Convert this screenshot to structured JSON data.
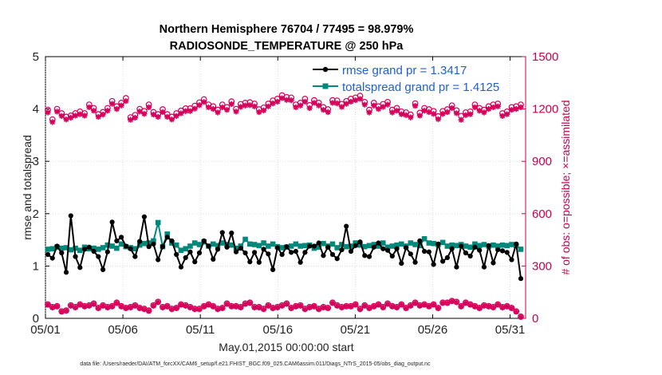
{
  "chart_data": {
    "type": "line",
    "title": "Northern Hemisphere 76704 / 77495 = 98.979%",
    "subtitle": "RADIOSONDE_TEMPERATURE @ 250 hPa",
    "xlabel": "May.01,2015 00:00:00 start",
    "ylabel_left": "rmse and totalspread",
    "ylabel_right": "# of obs: o=possible; ×=assimilated",
    "footer": "data file: /Users/raeder/DAI/ATM_forcXX/CAM6_setup/f.e21.FHIST_BGC.f09_025.CAM6assim.011/Diags_NTrS_2015-05/obs_diag_output.nc",
    "x_ticks": [
      {
        "value": 1,
        "label": "05/01"
      },
      {
        "value": 6,
        "label": "05/06"
      },
      {
        "value": 11,
        "label": "05/11"
      },
      {
        "value": 16,
        "label": "05/16"
      },
      {
        "value": 21,
        "label": "05/21"
      },
      {
        "value": 26,
        "label": "05/26"
      },
      {
        "value": 31,
        "label": "05/31"
      }
    ],
    "xlim": [
      1,
      32
    ],
    "ylim_left": [
      0,
      5
    ],
    "ylim_right": [
      0,
      1500
    ],
    "y_ticks_left": [
      "0",
      "1",
      "2",
      "3",
      "4",
      "5"
    ],
    "y_ticks_right": [
      "0",
      "300",
      "600",
      "900",
      "1200",
      "1500"
    ],
    "legend": {
      "position": "top-right",
      "entries": [
        "rmse grand pr = 1.3417",
        "totalspread grand pr = 1.4125"
      ]
    },
    "colors": {
      "rmse": "#000000",
      "totalspread": "#00897b",
      "obs": "#d6005a",
      "legend_text": "#1f5fd0",
      "right_axis": "#c8004e"
    },
    "series": [
      {
        "name": "rmse",
        "values": [
          1.22,
          1.15,
          1.38,
          1.25,
          0.88,
          1.96,
          1.18,
          0.97,
          1.32,
          1.36,
          1.28,
          1.18,
          0.93,
          1.27,
          1.84,
          1.48,
          1.55,
          1.38,
          1.33,
          1.18,
          1.47,
          1.94,
          1.37,
          1.42,
          1.12,
          1.37,
          1.55,
          1.48,
          1.22,
          0.98,
          1.16,
          1.27,
          1.08,
          1.25,
          1.48,
          1.38,
          1.13,
          1.32,
          1.64,
          1.36,
          1.63,
          1.27,
          1.34,
          1.25,
          1.08,
          1.26,
          1.07,
          1.32,
          1.23,
          0.93,
          1.35,
          1.22,
          1.37,
          1.26,
          1.28,
          1.07,
          1.26,
          1.38,
          1.38,
          1.44,
          1.2,
          1.36,
          1.22,
          1.14,
          1.31,
          1.76,
          1.28,
          1.39,
          1.46,
          1.2,
          1.18,
          1.36,
          1.44,
          1.33,
          1.3,
          1.19,
          1.33,
          1.05,
          1.35,
          1.23,
          1.07,
          1.48,
          1.28,
          1.27,
          1.03,
          1.42,
          1.09,
          1.16,
          1.33,
          0.98,
          1.38,
          1.25,
          1.19,
          1.36,
          1.3,
          0.98,
          1.39,
          1.06,
          1.31,
          1.29,
          1.26,
          1.12,
          1.42,
          0.76
        ]
      },
      {
        "name": "totalspread",
        "values": [
          1.32,
          1.33,
          1.36,
          1.34,
          1.35,
          1.31,
          1.34,
          1.3,
          1.36,
          1.33,
          1.34,
          1.32,
          1.35,
          1.4,
          1.38,
          1.34,
          1.42,
          1.37,
          1.35,
          1.33,
          1.4,
          1.43,
          1.44,
          1.48,
          1.83,
          1.37,
          1.61,
          1.44,
          1.4,
          1.3,
          1.33,
          1.38,
          1.44,
          1.41,
          1.46,
          1.38,
          1.42,
          1.39,
          1.44,
          1.41,
          1.4,
          1.34,
          1.38,
          1.51,
          1.42,
          1.41,
          1.39,
          1.44,
          1.38,
          1.42,
          1.37,
          1.35,
          1.36,
          1.38,
          1.42,
          1.38,
          1.39,
          1.4,
          1.34,
          1.36,
          1.43,
          1.38,
          1.42,
          1.35,
          1.41,
          1.37,
          1.38,
          1.44,
          1.4,
          1.37,
          1.39,
          1.41,
          1.38,
          1.44,
          1.36,
          1.38,
          1.4,
          1.42,
          1.38,
          1.44,
          1.41,
          1.39,
          1.52,
          1.44,
          1.43,
          1.41,
          1.45,
          1.38,
          1.4,
          1.39,
          1.41,
          1.38,
          1.36,
          1.42,
          1.39,
          1.41,
          1.38,
          1.4,
          1.38,
          1.4,
          1.39,
          1.41,
          1.39,
          1.32
        ]
      },
      {
        "name": "obs_possible",
        "values": [
          1195,
          1140,
          1200,
          1175,
          1155,
          1162,
          1175,
          1185,
          1175,
          1225,
          1205,
          1170,
          1182,
          1205,
          1245,
          1215,
          1235,
          1262,
          1152,
          1165,
          1200,
          1188,
          1225,
          1182,
          1170,
          1198,
          1170,
          1155,
          1175,
          1190,
          1203,
          1203,
          1218,
          1237,
          1255,
          1225,
          1215,
          1195,
          1225,
          1210,
          1243,
          1200,
          1228,
          1235,
          1238,
          1230,
          1198,
          1208,
          1230,
          1248,
          1258,
          1278,
          1268,
          1265,
          1225,
          1235,
          1258,
          1222,
          1250,
          1235,
          1210,
          1198,
          1250,
          1248,
          1228,
          1245,
          1258,
          1265,
          1275,
          1240,
          1195,
          1235,
          1215,
          1228,
          1240,
          1195,
          1205,
          1185,
          1180,
          1168,
          1232,
          1178,
          1205,
          1198,
          1188,
          1158,
          1188,
          1198,
          1220,
          1192,
          1160,
          1180,
          1185,
          1225,
          1205,
          1195,
          1215,
          1225,
          1230,
          1175,
          1185,
          1210,
          1215,
          1225
        ]
      },
      {
        "name": "obs_assimilated",
        "values": [
          1180,
          1125,
          1185,
          1160,
          1140,
          1150,
          1162,
          1170,
          1162,
          1210,
          1190,
          1155,
          1168,
          1190,
          1230,
          1200,
          1220,
          1245,
          1138,
          1150,
          1185,
          1172,
          1210,
          1168,
          1155,
          1182,
          1155,
          1140,
          1160,
          1175,
          1188,
          1188,
          1202,
          1222,
          1240,
          1210,
          1200,
          1180,
          1210,
          1195,
          1228,
          1185,
          1212,
          1220,
          1222,
          1215,
          1182,
          1192,
          1215,
          1232,
          1242,
          1262,
          1252,
          1250,
          1210,
          1220,
          1242,
          1205,
          1235,
          1220,
          1195,
          1182,
          1235,
          1232,
          1212,
          1230,
          1242,
          1250,
          1258,
          1225,
          1180,
          1220,
          1200,
          1212,
          1225,
          1180,
          1190,
          1170,
          1165,
          1152,
          1218,
          1162,
          1190,
          1182,
          1172,
          1142,
          1172,
          1182,
          1205,
          1176,
          1138,
          1165,
          1170,
          1210,
          1190,
          1180,
          1200,
          1210,
          1215,
          1160,
          1170,
          1195,
          1200,
          1210
        ]
      },
      {
        "name": "obs_bottom_possible",
        "values": [
          80,
          65,
          70,
          40,
          45,
          75,
          65,
          80,
          70,
          75,
          85,
          60,
          75,
          65,
          70,
          90,
          70,
          60,
          65,
          75,
          60,
          55,
          45,
          75,
          95,
          65,
          70,
          55,
          60,
          80,
          75,
          65,
          55,
          55,
          70,
          80,
          70,
          55,
          60,
          85,
          70,
          70,
          65,
          85,
          90,
          65,
          65,
          55,
          75,
          60,
          65,
          75,
          85,
          60,
          70,
          75,
          55,
          65,
          70,
          55,
          65,
          60,
          90,
          75,
          65,
          70,
          70,
          80,
          55,
          75,
          60,
          70,
          80,
          65,
          85,
          70,
          65,
          80,
          60,
          75,
          90,
          75,
          80,
          70,
          80,
          60,
          90,
          90,
          100,
          95,
          70,
          90,
          80,
          70,
          60,
          75,
          70,
          65,
          80,
          65,
          70,
          60,
          40,
          10
        ]
      },
      {
        "name": "obs_bottom_assimilated",
        "values": [
          78,
          62,
          68,
          38,
          43,
          72,
          62,
          78,
          68,
          72,
          82,
          58,
          72,
          62,
          68,
          88,
          68,
          58,
          62,
          72,
          58,
          52,
          42,
          72,
          92,
          62,
          68,
          52,
          58,
          78,
          72,
          62,
          52,
          52,
          68,
          78,
          68,
          52,
          58,
          82,
          68,
          68,
          62,
          82,
          88,
          62,
          62,
          52,
          72,
          58,
          62,
          72,
          82,
          58,
          68,
          72,
          52,
          62,
          68,
          52,
          62,
          58,
          88,
          72,
          62,
          68,
          68,
          78,
          52,
          72,
          58,
          68,
          78,
          62,
          82,
          68,
          62,
          78,
          58,
          72,
          88,
          72,
          78,
          68,
          78,
          58,
          88,
          88,
          98,
          92,
          68,
          88,
          78,
          68,
          58,
          72,
          68,
          62,
          78,
          62,
          68,
          58,
          38,
          8
        ]
      }
    ]
  }
}
